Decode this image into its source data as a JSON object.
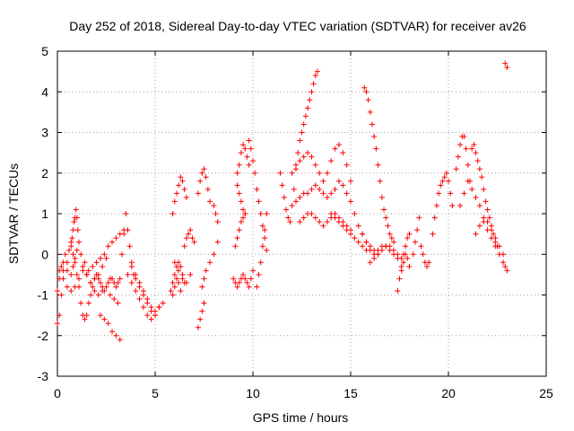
{
  "chart_data": {
    "type": "scatter",
    "title": "Day 252 of 2018, Sidereal Day-to-day VTEC variation (SDTVAR) for receiver av26",
    "xlabel": "GPS time / hours",
    "ylabel": "SDTVAR / TECUs",
    "xlim": [
      0,
      25
    ],
    "ylim": [
      -3,
      5
    ],
    "xticks": [
      0,
      5,
      10,
      15,
      20,
      25
    ],
    "yticks": [
      -3,
      -2,
      -1,
      0,
      1,
      2,
      3,
      4,
      5
    ],
    "grid": true,
    "marker": "+",
    "series_color": "#ff0000",
    "series": [
      {
        "name": "SDTVAR",
        "x": [
          0.0,
          0.1,
          0.2,
          0.3,
          0.4,
          0.5,
          0.6,
          0.7,
          0.8,
          0.9,
          1.0,
          1.1,
          1.2,
          1.3,
          1.4,
          1.5,
          1.6,
          1.7,
          1.8,
          1.9,
          2.0,
          2.1,
          2.2,
          2.3,
          2.4,
          2.5,
          2.6,
          2.7,
          2.8,
          2.9,
          3.0,
          3.1,
          3.2,
          0.0,
          0.1,
          0.2,
          0.3,
          0.5,
          0.7,
          0.8,
          0.9,
          1.0,
          1.2,
          1.4,
          1.6,
          1.8,
          2.0,
          2.2,
          2.4,
          2.6,
          2.8,
          3.0,
          3.2,
          3.4,
          0.1,
          0.3,
          0.5,
          0.7,
          0.9,
          1.1,
          1.3,
          1.5,
          1.7,
          1.9,
          2.1,
          2.3,
          2.5,
          2.7,
          2.9,
          3.1,
          0.7,
          0.75,
          0.8,
          0.85,
          0.9,
          0.95,
          1.0,
          1.05,
          1.1,
          1.3,
          1.5,
          1.7,
          1.9,
          2.1,
          2.3,
          2.5,
          2.2,
          2.4,
          2.6,
          2.8,
          3.0,
          3.2,
          3.3,
          3.4,
          3.5,
          3.6,
          3.7,
          3.8,
          3.9,
          4.0,
          4.2,
          4.4,
          4.6,
          4.8,
          5.0,
          5.2,
          5.4,
          3.6,
          3.8,
          4.0,
          4.2,
          4.4,
          4.6,
          4.8,
          5.0,
          5.2,
          3.8,
          4.0,
          4.2,
          4.4,
          4.6,
          4.8,
          5.0,
          5.8,
          5.9,
          6.0,
          6.1,
          6.2,
          6.3,
          6.4,
          6.5,
          6.0,
          6.2,
          6.4,
          6.6,
          6.8,
          5.9,
          6.0,
          6.1,
          6.2,
          6.3,
          6.4,
          6.5,
          6.6,
          5.9,
          6.0,
          6.1,
          6.2,
          6.3,
          6.5,
          6.6,
          6.7,
          6.8,
          6.9,
          7.0,
          7.2,
          7.3,
          7.4,
          7.5,
          7.6,
          7.7,
          7.8,
          7.2,
          7.3,
          7.4,
          7.5,
          7.4,
          7.5,
          7.6,
          7.8,
          8.0,
          8.2,
          8.0,
          8.1,
          8.2,
          9.0,
          9.1,
          9.2,
          9.3,
          9.4,
          9.5,
          9.6,
          9.7,
          9.8,
          9.9,
          10.0,
          9.2,
          9.3,
          9.4,
          9.5,
          9.6,
          9.7,
          9.8,
          9.1,
          9.2,
          9.3,
          9.4,
          9.5,
          9.6,
          9.2,
          9.3,
          9.4,
          9.5,
          9.6,
          9.8,
          9.9,
          10.0,
          10.1,
          10.2,
          10.3,
          10.4,
          10.5,
          10.6,
          10.7,
          10.2,
          10.3,
          10.4,
          10.5,
          10.6,
          10.7,
          11.4,
          11.5,
          11.6,
          11.7,
          11.8,
          11.9,
          12.0,
          12.1,
          12.2,
          12.3,
          12.4,
          12.5,
          12.6,
          12.7,
          12.8,
          12.9,
          13.0,
          13.1,
          13.2,
          13.3,
          12.0,
          12.2,
          12.4,
          12.6,
          12.8,
          13.0,
          13.2,
          13.4,
          13.6,
          13.8,
          14.0,
          14.2,
          14.4,
          14.6,
          14.8,
          15.0,
          12.2,
          12.4,
          12.6,
          12.8,
          13.0,
          13.2,
          13.4,
          13.6,
          13.8,
          14.0,
          14.2,
          14.4,
          14.6,
          14.8,
          15.0,
          15.2,
          15.4,
          15.6,
          15.8,
          12.4,
          12.6,
          12.8,
          13.0,
          13.2,
          13.4,
          13.6,
          13.8,
          14.0,
          14.2,
          14.4,
          14.6,
          14.8,
          15.0,
          14.0,
          14.2,
          14.4,
          14.6,
          14.8,
          15.0,
          15.2,
          15.4,
          15.6,
          15.8,
          16.0,
          16.2,
          16.4,
          15.7,
          15.8,
          15.9,
          16.0,
          16.1,
          16.2,
          16.3,
          16.4,
          16.5,
          16.6,
          16.7,
          16.8,
          16.9,
          17.0,
          17.1,
          17.2,
          15.6,
          15.8,
          16.0,
          16.2,
          16.4,
          16.6,
          16.8,
          17.0,
          17.2,
          17.4,
          16.0,
          16.2,
          16.4,
          16.6,
          16.8,
          17.0,
          17.2,
          17.4,
          17.6,
          17.4,
          17.5,
          17.6,
          17.7,
          17.8,
          17.9,
          18.0,
          17.6,
          17.7,
          17.8,
          17.9,
          18.0,
          18.2,
          18.3,
          18.4,
          18.5,
          18.6,
          18.7,
          18.8,
          18.9,
          19.0,
          19.2,
          19.3,
          19.4,
          19.5,
          19.6,
          19.7,
          19.8,
          19.9,
          20.0,
          20.1,
          20.2,
          20.4,
          20.5,
          20.6,
          20.7,
          20.8,
          20.9,
          21.0,
          21.1,
          20.6,
          20.8,
          21.0,
          21.2,
          21.4,
          21.6,
          21.2,
          21.3,
          21.4,
          21.5,
          21.6,
          21.7,
          21.8,
          21.9,
          22.0,
          22.1,
          22.2,
          22.3,
          22.4,
          22.5,
          21.4,
          21.6,
          21.8,
          22.0,
          22.2,
          22.4,
          22.6,
          22.8,
          21.8,
          22.0,
          22.2,
          22.4,
          22.6,
          22.8,
          22.9,
          23.0,
          22.9,
          23.0
        ],
        "y": [
          -1.7,
          -1.5,
          -1.0,
          -0.4,
          0.0,
          -0.2,
          0.1,
          0.3,
          0.0,
          -0.2,
          -0.5,
          -0.8,
          -1.2,
          -1.5,
          -1.6,
          -1.5,
          -1.2,
          -1.0,
          -0.8,
          -0.6,
          -0.5,
          -0.6,
          -0.7,
          -0.8,
          -0.9,
          -0.8,
          -0.7,
          -0.6,
          -0.6,
          -0.7,
          -0.8,
          -0.7,
          -0.6,
          -0.9,
          -0.6,
          -0.3,
          -0.2,
          -0.4,
          -0.5,
          -0.3,
          -0.1,
          0.1,
          0.0,
          -0.2,
          -0.4,
          -0.3,
          -0.2,
          -0.1,
          0.0,
          0.2,
          0.3,
          0.4,
          0.5,
          0.6,
          -0.4,
          -0.6,
          -0.8,
          -0.9,
          -0.8,
          -0.6,
          -0.4,
          -0.5,
          -0.7,
          -0.9,
          -1.0,
          -0.9,
          -0.8,
          -1.0,
          -1.1,
          -1.2,
          0.2,
          0.4,
          0.6,
          0.8,
          0.9,
          1.1,
          0.9,
          0.6,
          0.3,
          -0.3,
          -0.5,
          -0.7,
          -0.6,
          -0.5,
          -0.3,
          -0.1,
          -1.5,
          -1.6,
          -1.7,
          -1.9,
          -2.0,
          -2.1,
          0.0,
          0.5,
          1.0,
          0.6,
          0.2,
          -0.2,
          -0.5,
          -0.6,
          -0.7,
          -0.9,
          -1.1,
          -1.3,
          -1.4,
          -1.3,
          -1.2,
          -0.5,
          -0.7,
          -0.9,
          -1.1,
          -1.3,
          -1.5,
          -1.6,
          -1.5,
          -1.3,
          -0.3,
          -0.5,
          -0.8,
          -1.0,
          -1.2,
          -1.4,
          -1.5,
          -0.9,
          -0.7,
          -0.5,
          -0.3,
          -0.2,
          -0.3,
          -0.5,
          -0.7,
          -0.2,
          -0.4,
          -0.6,
          -0.7,
          -0.5,
          1.0,
          1.3,
          1.5,
          1.7,
          1.9,
          1.8,
          1.6,
          1.4,
          -1.0,
          -0.8,
          -0.6,
          -0.7,
          -0.9,
          0.2,
          0.4,
          0.5,
          0.6,
          0.4,
          0.3,
          1.5,
          1.8,
          2.0,
          2.1,
          1.9,
          1.6,
          1.3,
          -1.8,
          -1.6,
          -1.4,
          -1.2,
          -0.8,
          -0.6,
          -0.4,
          -0.2,
          0.0,
          0.3,
          1.2,
          1.0,
          0.8,
          -0.6,
          -0.7,
          -0.8,
          -0.7,
          -0.6,
          -0.5,
          -0.6,
          -0.7,
          -0.8,
          -0.6,
          -0.4,
          2.0,
          2.2,
          2.5,
          2.7,
          2.6,
          2.4,
          2.2,
          0.2,
          0.4,
          0.6,
          0.8,
          0.9,
          1.0,
          1.7,
          1.5,
          1.3,
          1.1,
          1.0,
          2.8,
          2.6,
          2.3,
          2.0,
          1.6,
          1.3,
          1.0,
          0.7,
          0.4,
          0.1,
          -0.8,
          -0.5,
          -0.2,
          0.2,
          0.6,
          1.0,
          2.0,
          1.7,
          1.4,
          1.1,
          0.9,
          0.8,
          1.2,
          1.6,
          2.1,
          2.5,
          2.8,
          3.0,
          3.2,
          3.4,
          3.6,
          3.8,
          4.0,
          4.2,
          4.4,
          4.5,
          2.0,
          2.2,
          2.3,
          2.4,
          2.5,
          2.4,
          2.2,
          2.0,
          1.8,
          2.0,
          2.3,
          2.6,
          2.7,
          2.5,
          2.2,
          1.8,
          1.3,
          1.4,
          1.5,
          1.5,
          1.6,
          1.7,
          1.6,
          1.5,
          1.4,
          1.5,
          1.6,
          1.8,
          1.7,
          1.5,
          1.3,
          1.0,
          0.7,
          0.5,
          0.3,
          0.8,
          0.9,
          1.0,
          1.0,
          0.9,
          0.8,
          0.7,
          0.8,
          0.9,
          1.0,
          0.9,
          0.8,
          0.7,
          0.6,
          1.0,
          0.9,
          0.8,
          0.7,
          0.6,
          0.5,
          0.4,
          0.3,
          0.2,
          0.1,
          0.1,
          0.0,
          0.0,
          4.1,
          4.0,
          3.8,
          3.5,
          3.2,
          2.9,
          2.6,
          2.2,
          1.8,
          1.4,
          1.1,
          0.9,
          0.7,
          0.5,
          0.4,
          0.3,
          0.5,
          0.3,
          0.2,
          0.1,
          0.1,
          0.2,
          0.2,
          0.1,
          0.0,
          -0.1,
          -0.2,
          -0.1,
          0.0,
          0.1,
          0.2,
          0.2,
          0.1,
          0.0,
          -0.1,
          -0.9,
          -0.6,
          -0.3,
          0.0,
          0.2,
          0.4,
          0.5,
          -0.4,
          -0.2,
          0.0,
          -0.1,
          -0.3,
          0.0,
          0.3,
          0.6,
          0.9,
          0.2,
          0.0,
          -0.2,
          -0.3,
          -0.2,
          0.5,
          0.9,
          1.2,
          1.5,
          1.7,
          1.8,
          1.9,
          2.0,
          1.8,
          1.5,
          1.2,
          2.1,
          2.4,
          2.7,
          2.9,
          2.9,
          2.6,
          2.2,
          1.8,
          1.2,
          1.5,
          1.8,
          1.6,
          1.4,
          1.2,
          2.6,
          2.7,
          2.5,
          2.3,
          2.1,
          1.9,
          1.6,
          1.3,
          1.1,
          0.9,
          0.7,
          0.5,
          0.3,
          0.2,
          0.5,
          0.7,
          0.9,
          0.8,
          0.6,
          0.4,
          0.2,
          0.0,
          0.8,
          0.6,
          0.4,
          0.2,
          0.0,
          -0.2,
          -0.3,
          -0.4,
          4.7,
          4.6
        ]
      }
    ]
  }
}
